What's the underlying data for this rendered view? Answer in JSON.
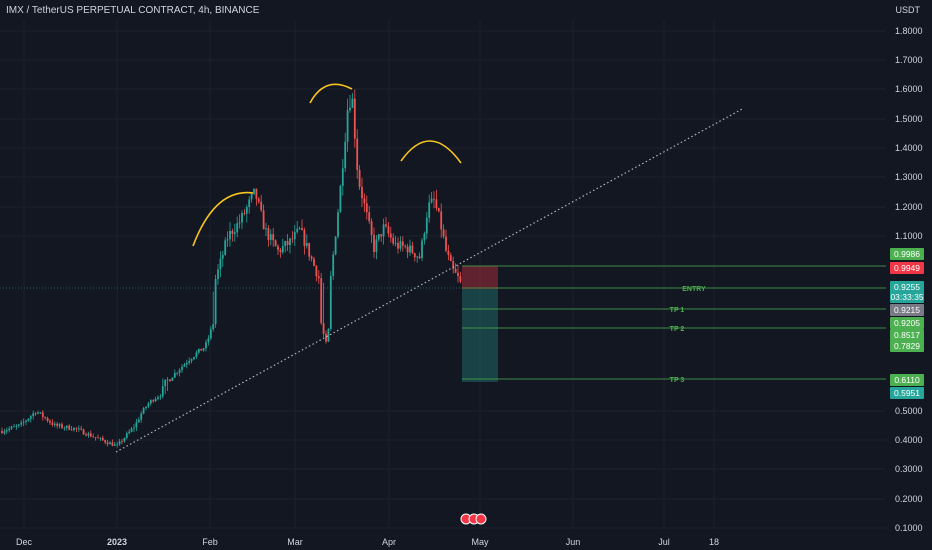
{
  "header": {
    "title": "IMX / TetherUS PERPETUAL CONTRACT, 4h, BINANCE",
    "currency": "USDT"
  },
  "colors": {
    "background": "#131722",
    "grid": "#1e222d",
    "up_candle": "#26a69a",
    "down_candle": "#ef5350",
    "level_line": "#4caf50",
    "pattern_arc": "#f7c51e",
    "trendline": "#b2b5be",
    "axis_text": "#d1d4dc"
  },
  "chart_data": {
    "type": "candlestick",
    "y_axis": {
      "ticks": [
        "1.8000",
        "1.7000",
        "1.6000",
        "1.5000",
        "1.4000",
        "1.3000",
        "1.2000",
        "1.1000",
        "0.5000",
        "0.4000",
        "0.3000",
        "0.2000",
        "0.1000"
      ],
      "range": [
        0.1,
        1.8
      ]
    },
    "x_axis": {
      "ticks": [
        "Dec",
        "2023",
        "Feb",
        "Mar",
        "Apr",
        "May",
        "Jun",
        "Jul",
        "18"
      ]
    },
    "approx_price_path": [
      [
        "Dec",
        0.46
      ],
      [
        "mid-Dec",
        0.5
      ],
      [
        "late-Dec",
        0.42
      ],
      [
        "2023",
        0.38
      ],
      [
        "mid-Jan",
        0.55
      ],
      [
        "late-Jan",
        0.75
      ],
      [
        "Feb",
        1.0
      ],
      [
        "Feb peak",
        1.25
      ],
      [
        "late-Feb",
        1.05
      ],
      [
        "early-Mar",
        0.82
      ],
      [
        "mid-Mar",
        1.12
      ],
      [
        "Mar peak",
        1.62
      ],
      [
        "late-Mar",
        1.05
      ],
      [
        "Apr",
        1.02
      ],
      [
        "mid-Apr",
        1.23
      ],
      [
        "late-Apr",
        0.93
      ]
    ],
    "levels": [
      {
        "label": "",
        "value": "0.9986",
        "color": "#4caf50"
      },
      {
        "label": "",
        "value": "0.9949",
        "color": "#f23645"
      },
      {
        "label": "ENTRY",
        "value": "0.9255",
        "color": "#4caf50"
      },
      {
        "label": "TP 1",
        "value": "0.9215",
        "color": "#787b86"
      },
      {
        "label": "TP 2",
        "value": "0.8517",
        "color": "#4caf50"
      },
      {
        "label": "TP 3",
        "value": "0.6110",
        "color": "#4caf50"
      }
    ],
    "price_labels": [
      {
        "text": "0.9986",
        "bg": "#4caf50"
      },
      {
        "text": "0.9949",
        "bg": "#f23645"
      },
      {
        "text": "0.9255",
        "bg": "#26a69a"
      },
      {
        "text": "03:33:35",
        "bg": "#26a69a"
      },
      {
        "text": "0.9215",
        "bg": "#787b86"
      },
      {
        "text": "0.9205",
        "bg": "#4caf50"
      },
      {
        "text": "0.8517",
        "bg": "#4caf50"
      },
      {
        "text": "0.7829",
        "bg": "#4caf50"
      },
      {
        "text": "0.6110",
        "bg": "#4caf50"
      },
      {
        "text": "0.5951",
        "bg": "#26a69a"
      }
    ],
    "patterns": [
      "left-shoulder",
      "head",
      "right-shoulder"
    ],
    "trendline": "dotted ascending neckline"
  }
}
